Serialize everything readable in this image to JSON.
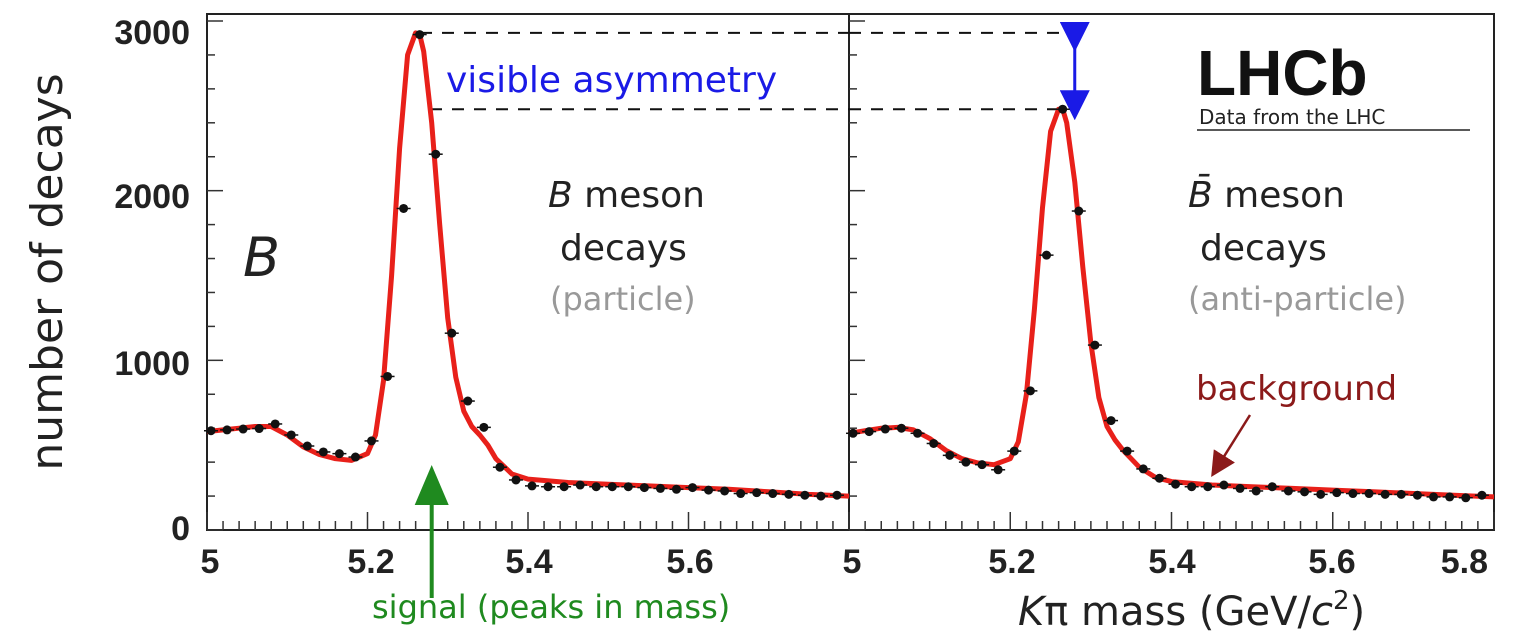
{
  "chart_data": {
    "type": "scatter",
    "ylabel": "number of decays",
    "xlabel_prefix": "K",
    "xlabel_pi": "π",
    "xlabel_suffix": " mass (GeV/",
    "xlabel_c": "c",
    "xlabel_sup": "2",
    "xlabel_end": ")",
    "ylim": [
      0,
      3000
    ],
    "yticks": [
      "0",
      "1000",
      "2000",
      "3000"
    ],
    "xlim": [
      5.0,
      5.8
    ],
    "xticks_left": [
      "5",
      "5.2",
      "5.4",
      "5.6"
    ],
    "xticks_right": [
      "5",
      "5.2",
      "5.4",
      "5.6",
      "5.8"
    ],
    "legend": "none",
    "grid": false,
    "panels": [
      {
        "symbol": "B",
        "title_symbol": "B",
        "title_rest": " meson",
        "title_line2": "decays",
        "subtitle": "(particle)",
        "series": [
          {
            "x": [
              5.005,
              5.025,
              5.045,
              5.065,
              5.085,
              5.105,
              5.125,
              5.145,
              5.165,
              5.185,
              5.205,
              5.225,
              5.245,
              5.265,
              5.285,
              5.305,
              5.325,
              5.345,
              5.365,
              5.385,
              5.405,
              5.425,
              5.445,
              5.465,
              5.485,
              5.505,
              5.525,
              5.545,
              5.565,
              5.585,
              5.605,
              5.625,
              5.645,
              5.665,
              5.685,
              5.705,
              5.725,
              5.745,
              5.765,
              5.785
            ],
            "y": [
              585,
              590,
              595,
              598,
              625,
              560,
              495,
              460,
              450,
              430,
              525,
              905,
              1895,
              2920,
              2215,
              1160,
              760,
              605,
              370,
              295,
              260,
              255,
              255,
              265,
              255,
              255,
              255,
              250,
              245,
              240,
              250,
              235,
              230,
              215,
              220,
              215,
              210,
              205,
              200,
              205
            ]
          }
        ],
        "fit": {
          "x": [
            5.0,
            5.02,
            5.04,
            5.06,
            5.08,
            5.1,
            5.12,
            5.14,
            5.16,
            5.18,
            5.2,
            5.21,
            5.22,
            5.23,
            5.24,
            5.25,
            5.26,
            5.265,
            5.27,
            5.28,
            5.29,
            5.3,
            5.31,
            5.32,
            5.33,
            5.34,
            5.35,
            5.36,
            5.38,
            5.4,
            5.45,
            5.5,
            5.55,
            5.6,
            5.65,
            5.7,
            5.75,
            5.8
          ],
          "y": [
            580,
            590,
            600,
            610,
            610,
            560,
            490,
            445,
            420,
            410,
            450,
            560,
            880,
            1500,
            2250,
            2800,
            2930,
            2920,
            2820,
            2400,
            1800,
            1250,
            900,
            700,
            610,
            560,
            500,
            420,
            330,
            300,
            280,
            270,
            260,
            250,
            240,
            225,
            210,
            200
          ]
        }
      },
      {
        "title_symbol": "B̄",
        "title_rest": " meson",
        "title_line2": "decays",
        "subtitle": "(anti-particle)",
        "series": [
          {
            "x": [
              5.005,
              5.025,
              5.045,
              5.065,
              5.085,
              5.105,
              5.125,
              5.145,
              5.165,
              5.185,
              5.205,
              5.225,
              5.245,
              5.265,
              5.285,
              5.305,
              5.325,
              5.345,
              5.365,
              5.385,
              5.405,
              5.425,
              5.445,
              5.465,
              5.485,
              5.505,
              5.525,
              5.545,
              5.565,
              5.585,
              5.605,
              5.625,
              5.645,
              5.665,
              5.685,
              5.705,
              5.725,
              5.745,
              5.765,
              5.785
            ],
            "y": [
              570,
              580,
              595,
              600,
              570,
              510,
              440,
              400,
              385,
              355,
              465,
              820,
              1620,
              2480,
              1880,
              1090,
              645,
              465,
              360,
              305,
              270,
              255,
              255,
              265,
              245,
              230,
              255,
              230,
              225,
              210,
              220,
              215,
              215,
              210,
              210,
              205,
              195,
              195,
              190,
              205
            ]
          }
        ],
        "fit": {
          "x": [
            5.0,
            5.02,
            5.04,
            5.06,
            5.08,
            5.1,
            5.12,
            5.14,
            5.16,
            5.18,
            5.2,
            5.21,
            5.22,
            5.23,
            5.24,
            5.25,
            5.26,
            5.265,
            5.27,
            5.28,
            5.29,
            5.3,
            5.31,
            5.32,
            5.33,
            5.34,
            5.35,
            5.36,
            5.38,
            5.4,
            5.45,
            5.5,
            5.55,
            5.6,
            5.65,
            5.7,
            5.75,
            5.8
          ],
          "y": [
            570,
            585,
            600,
            605,
            590,
            540,
            470,
            420,
            395,
            385,
            420,
            520,
            800,
            1300,
            1900,
            2350,
            2480,
            2480,
            2400,
            2050,
            1550,
            1100,
            780,
            610,
            530,
            470,
            420,
            370,
            310,
            285,
            265,
            255,
            245,
            235,
            225,
            215,
            205,
            195
          ]
        }
      }
    ],
    "annotations": {
      "asymmetry": "visible asymmetry",
      "signal": "signal (peaks in mass)",
      "background": "background",
      "brand": "LHCb",
      "brand_sub": "Data from the LHC"
    },
    "colors": {
      "fit": "#e8201a",
      "points": "#111111",
      "asymmetry": "#1a1ae6",
      "signal": "#1f8a1f",
      "background": "#8b1a1a",
      "subtitle": "#999999"
    }
  }
}
